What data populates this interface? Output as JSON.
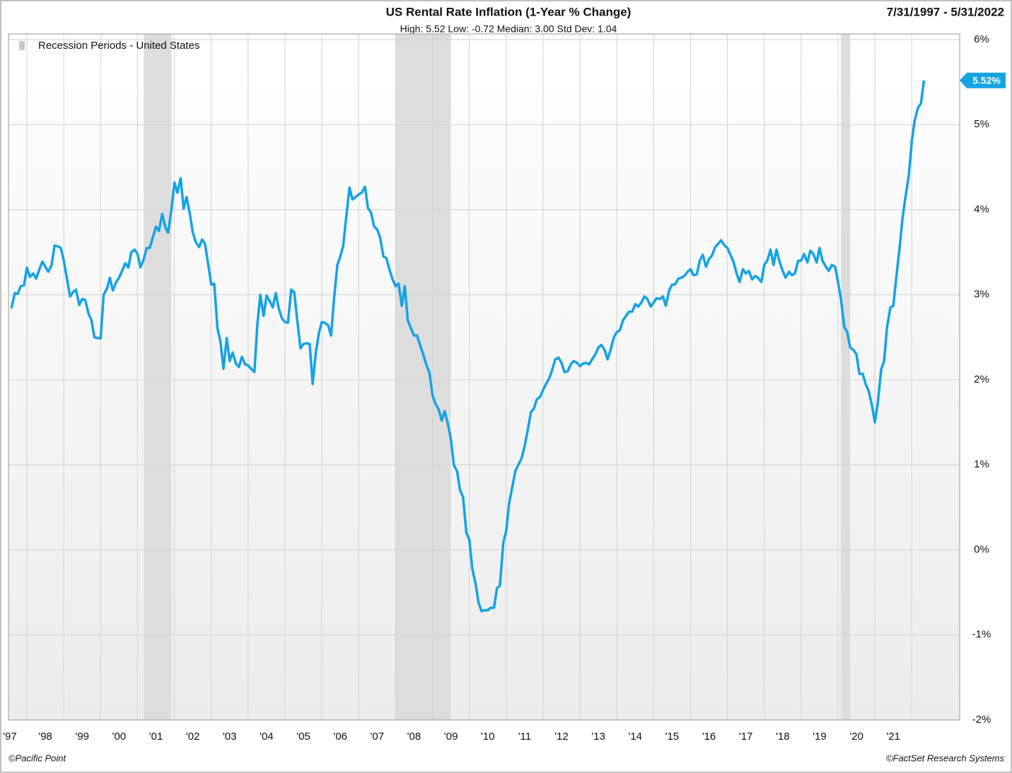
{
  "chart_data": {
    "type": "line",
    "title": "US Rental Rate Inflation (1-Year % Change)",
    "subtitle": "High: 5.52 Low: -0.72 Median: 3.00 Std Dev: 1.04",
    "date_range": "7/31/1997 - 5/31/2022",
    "source_left": "©Pacific Point",
    "source_right": "©FactSet Research Systems",
    "recession_label": "Recession Periods - United States",
    "recession_color": "#dddddd",
    "recessions": [
      [
        2001.17,
        2001.92
      ],
      [
        2008.0,
        2009.5
      ],
      [
        2020.08,
        2020.33
      ]
    ],
    "annotations": [
      {
        "text": "5.52%",
        "value": 5.52
      }
    ],
    "xlim": [
      1997.5,
      2023.3
    ],
    "xticks": [
      {
        "value": 1997,
        "label": "'97"
      },
      {
        "value": 1998,
        "label": "'98"
      },
      {
        "value": 1999,
        "label": "'99"
      },
      {
        "value": 2000,
        "label": "'00"
      },
      {
        "value": 2001,
        "label": "'01"
      },
      {
        "value": 2002,
        "label": "'02"
      },
      {
        "value": 2003,
        "label": "'03"
      },
      {
        "value": 2004,
        "label": "'04"
      },
      {
        "value": 2005,
        "label": "'05"
      },
      {
        "value": 2006,
        "label": "'06"
      },
      {
        "value": 2007,
        "label": "'07"
      },
      {
        "value": 2008,
        "label": "'08"
      },
      {
        "value": 2009,
        "label": "'09"
      },
      {
        "value": 2010,
        "label": "'10"
      },
      {
        "value": 2011,
        "label": "'11"
      },
      {
        "value": 2012,
        "label": "'12"
      },
      {
        "value": 2013,
        "label": "'13"
      },
      {
        "value": 2014,
        "label": "'14"
      },
      {
        "value": 2015,
        "label": "'15"
      },
      {
        "value": 2016,
        "label": "'16"
      },
      {
        "value": 2017,
        "label": "'17"
      },
      {
        "value": 2018,
        "label": "'18"
      },
      {
        "value": 2019,
        "label": "'19"
      },
      {
        "value": 2020,
        "label": "'20"
      },
      {
        "value": 2021,
        "label": "'21"
      },
      {
        "value": 2022
      }
    ],
    "ylim": [
      -2,
      6
    ],
    "yticks": [
      {
        "value": -2,
        "label": "-2%"
      },
      {
        "value": -1,
        "label": "-1%"
      },
      {
        "value": 0,
        "label": "0%"
      },
      {
        "value": 1,
        "label": "1%"
      },
      {
        "value": 2,
        "label": "2%"
      },
      {
        "value": 3,
        "label": "3%"
      },
      {
        "value": 4,
        "label": "4%"
      },
      {
        "value": 5,
        "label": "5%"
      },
      {
        "value": 6,
        "label": "6%"
      }
    ],
    "grid": true,
    "color": "#15a3e2",
    "x": [
      1997.58,
      1997.67,
      1997.75,
      1997.83,
      1997.92,
      1998,
      1998.08,
      1998.17,
      1998.25,
      1998.33,
      1998.42,
      1998.5,
      1998.58,
      1998.67,
      1998.75,
      1998.83,
      1998.92,
      1999,
      1999.08,
      1999.17,
      1999.25,
      1999.33,
      1999.42,
      1999.5,
      1999.58,
      1999.67,
      1999.75,
      1999.83,
      1999.92,
      2000,
      2000.08,
      2000.17,
      2000.25,
      2000.33,
      2000.42,
      2000.5,
      2000.58,
      2000.67,
      2000.75,
      2000.83,
      2000.92,
      2001,
      2001.08,
      2001.17,
      2001.25,
      2001.33,
      2001.42,
      2001.5,
      2001.58,
      2001.67,
      2001.75,
      2001.83,
      2001.92,
      2002,
      2002.08,
      2002.17,
      2002.25,
      2002.33,
      2002.42,
      2002.5,
      2002.58,
      2002.67,
      2002.75,
      2002.83,
      2002.92,
      2003,
      2003.08,
      2003.17,
      2003.25,
      2003.33,
      2003.42,
      2003.5,
      2003.58,
      2003.67,
      2003.75,
      2003.83,
      2003.92,
      2004,
      2004.08,
      2004.17,
      2004.25,
      2004.33,
      2004.42,
      2004.5,
      2004.58,
      2004.67,
      2004.75,
      2004.83,
      2004.92,
      2005,
      2005.08,
      2005.17,
      2005.25,
      2005.33,
      2005.42,
      2005.5,
      2005.58,
      2005.67,
      2005.75,
      2005.83,
      2005.92,
      2006,
      2006.08,
      2006.17,
      2006.25,
      2006.33,
      2006.42,
      2006.5,
      2006.58,
      2006.67,
      2006.75,
      2006.83,
      2006.92,
      2007,
      2007.08,
      2007.17,
      2007.25,
      2007.33,
      2007.42,
      2007.5,
      2007.58,
      2007.67,
      2007.75,
      2007.83,
      2007.92,
      2008,
      2008.08,
      2008.17,
      2008.25,
      2008.33,
      2008.42,
      2008.5,
      2008.58,
      2008.67,
      2008.75,
      2008.83,
      2008.92,
      2009,
      2009.08,
      2009.17,
      2009.25,
      2009.33,
      2009.42,
      2009.5,
      2009.58,
      2009.67,
      2009.75,
      2009.83,
      2009.92,
      2010,
      2010.08,
      2010.17,
      2010.25,
      2010.33,
      2010.42,
      2010.5,
      2010.58,
      2010.67,
      2010.75,
      2010.83,
      2010.92,
      2011,
      2011.08,
      2011.17,
      2011.25,
      2011.33,
      2011.42,
      2011.5,
      2011.58,
      2011.67,
      2011.75,
      2011.83,
      2011.92,
      2012,
      2012.08,
      2012.17,
      2012.25,
      2012.33,
      2012.42,
      2012.5,
      2012.58,
      2012.67,
      2012.75,
      2012.83,
      2012.92,
      2013,
      2013.08,
      2013.17,
      2013.25,
      2013.33,
      2013.42,
      2013.5,
      2013.58,
      2013.67,
      2013.75,
      2013.83,
      2013.92,
      2014,
      2014.08,
      2014.17,
      2014.25,
      2014.33,
      2014.42,
      2014.5,
      2014.58,
      2014.67,
      2014.75,
      2014.83,
      2014.92,
      2015,
      2015.08,
      2015.17,
      2015.25,
      2015.33,
      2015.42,
      2015.5,
      2015.58,
      2015.67,
      2015.75,
      2015.83,
      2015.92,
      2016,
      2016.08,
      2016.17,
      2016.25,
      2016.33,
      2016.42,
      2016.5,
      2016.58,
      2016.67,
      2016.75,
      2016.83,
      2016.92,
      2017,
      2017.08,
      2017.17,
      2017.25,
      2017.33,
      2017.42,
      2017.5,
      2017.58,
      2017.67,
      2017.75,
      2017.83,
      2017.92,
      2018,
      2018.08,
      2018.17,
      2018.25,
      2018.33,
      2018.42,
      2018.5,
      2018.58,
      2018.67,
      2018.75,
      2018.83,
      2018.92,
      2019,
      2019.08,
      2019.17,
      2019.25,
      2019.33,
      2019.42,
      2019.5,
      2019.58,
      2019.67,
      2019.75,
      2019.83,
      2019.92,
      2020,
      2020.08,
      2020.17,
      2020.25,
      2020.33,
      2020.42,
      2020.5,
      2020.58,
      2020.67,
      2020.75,
      2020.83,
      2020.92,
      2021,
      2021.08,
      2021.17,
      2021.25,
      2021.33,
      2021.42,
      2021.5,
      2021.58,
      2021.67,
      2021.75,
      2021.83,
      2021.92,
      2022,
      2022.08,
      2022.17,
      2022.25,
      2022.33
    ],
    "values": [
      2.84,
      3.02,
      3.01,
      3.1,
      3.11,
      3.32,
      3.21,
      3.25,
      3.19,
      3.29,
      3.39,
      3.33,
      3.27,
      3.35,
      3.58,
      3.57,
      3.55,
      3.4,
      3.2,
      2.98,
      3.03,
      3.06,
      2.88,
      2.95,
      2.94,
      2.78,
      2.7,
      2.5,
      2.49,
      2.49,
      3.0,
      3.07,
      3.2,
      3.05,
      3.15,
      3.2,
      3.28,
      3.37,
      3.32,
      3.5,
      3.53,
      3.48,
      3.32,
      3.42,
      3.55,
      3.55,
      3.68,
      3.8,
      3.75,
      3.95,
      3.8,
      3.73,
      4.0,
      4.32,
      4.2,
      4.37,
      4.01,
      4.15,
      3.95,
      3.73,
      3.62,
      3.56,
      3.65,
      3.6,
      3.35,
      3.12,
      3.13,
      2.6,
      2.45,
      2.13,
      2.49,
      2.22,
      2.32,
      2.19,
      2.15,
      2.27,
      2.18,
      2.17,
      2.13,
      2.09,
      2.65,
      3.0,
      2.75,
      2.99,
      2.93,
      2.85,
      3.02,
      2.84,
      2.72,
      2.68,
      2.67,
      3.06,
      3.03,
      2.71,
      2.37,
      2.42,
      2.43,
      2.42,
      1.95,
      2.3,
      2.55,
      2.68,
      2.67,
      2.64,
      2.52,
      2.95,
      3.35,
      3.45,
      3.58,
      3.95,
      4.26,
      4.12,
      4.15,
      4.18,
      4.2,
      4.27,
      4.02,
      3.97,
      3.8,
      3.77,
      3.67,
      3.45,
      3.43,
      3.3,
      3.18,
      3.1,
      3.13,
      2.87,
      3.1,
      2.7,
      2.6,
      2.52,
      2.52,
      2.4,
      2.3,
      2.18,
      2.08,
      1.82,
      1.72,
      1.65,
      1.52,
      1.63,
      1.48,
      1.3,
      1.0,
      0.92,
      0.7,
      0.62,
      0.2,
      0.12,
      -0.22,
      -0.4,
      -0.62,
      -0.72,
      -0.71,
      -0.71,
      -0.68,
      -0.68,
      -0.45,
      -0.42,
      0.08,
      0.22,
      0.55,
      0.75,
      0.93,
      1.0,
      1.08,
      1.22,
      1.4,
      1.62,
      1.66,
      1.77,
      1.8,
      1.88,
      1.95,
      2.02,
      2.12,
      2.24,
      2.26,
      2.2,
      2.09,
      2.1,
      2.18,
      2.22,
      2.2,
      2.16,
      2.19,
      2.2,
      2.18,
      2.24,
      2.3,
      2.38,
      2.41,
      2.35,
      2.24,
      2.35,
      2.5,
      2.56,
      2.58,
      2.7,
      2.75,
      2.8,
      2.8,
      2.89,
      2.86,
      2.91,
      2.98,
      2.95,
      2.86,
      2.91,
      2.96,
      2.95,
      2.98,
      2.87,
      3.05,
      3.12,
      3.12,
      3.19,
      3.2,
      3.22,
      3.27,
      3.3,
      3.23,
      3.24,
      3.4,
      3.47,
      3.33,
      3.42,
      3.46,
      3.56,
      3.6,
      3.64,
      3.58,
      3.55,
      3.47,
      3.38,
      3.25,
      3.15,
      3.3,
      3.25,
      3.28,
      3.18,
      3.22,
      3.2,
      3.15,
      3.35,
      3.4,
      3.53,
      3.35,
      3.53,
      3.38,
      3.28,
      3.2,
      3.27,
      3.23,
      3.25,
      3.4,
      3.4,
      3.48,
      3.38,
      3.52,
      3.48,
      3.38,
      3.55,
      3.4,
      3.33,
      3.28,
      3.35,
      3.33,
      3.15,
      2.95,
      2.62,
      2.56,
      2.38,
      2.35,
      2.3,
      2.07,
      2.07,
      1.95,
      1.87,
      1.7,
      1.5,
      1.73,
      2.12,
      2.22,
      2.62,
      2.85,
      2.87,
      3.2,
      3.55,
      3.9,
      4.15,
      4.4,
      4.8,
      5.05,
      5.2,
      5.25,
      5.52
    ]
  }
}
